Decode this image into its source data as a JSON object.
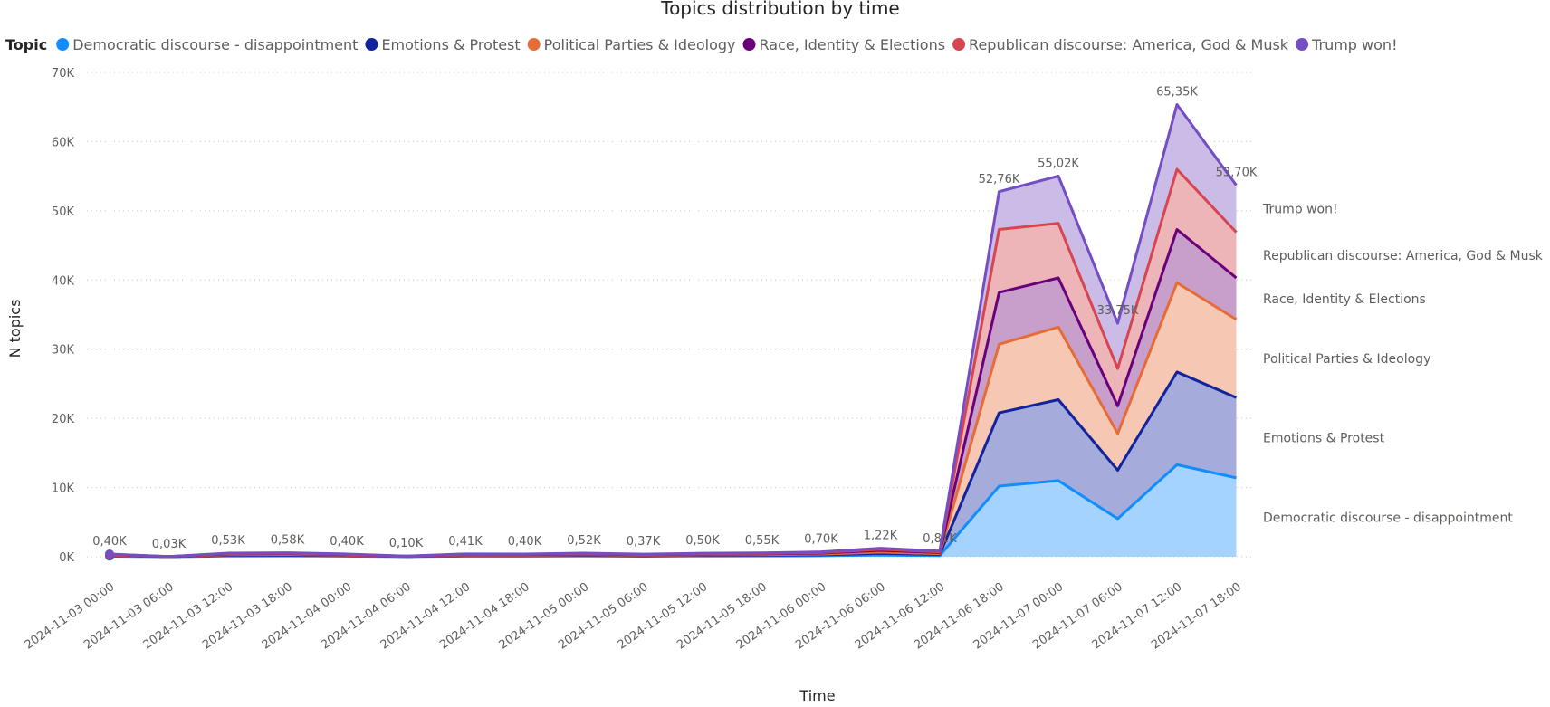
{
  "legend": {
    "title": "Topic"
  },
  "chart_data": {
    "type": "area",
    "stacked": true,
    "title": "Topics distribution by time",
    "xlabel": "Time",
    "ylabel": "N topics",
    "ylim": [
      0,
      70000
    ],
    "y_ticks": [
      0,
      10000,
      20000,
      30000,
      40000,
      50000,
      60000,
      70000
    ],
    "y_tick_labels": [
      "0K",
      "10K",
      "20K",
      "30K",
      "40K",
      "50K",
      "60K",
      "70K"
    ],
    "grid": true,
    "legend_position": "top-left",
    "categories": [
      "2024-11-03 00:00",
      "2024-11-03 06:00",
      "2024-11-03 12:00",
      "2024-11-03 18:00",
      "2024-11-04 00:00",
      "2024-11-04 06:00",
      "2024-11-04 12:00",
      "2024-11-04 18:00",
      "2024-11-05 00:00",
      "2024-11-05 06:00",
      "2024-11-05 12:00",
      "2024-11-05 18:00",
      "2024-11-06 00:00",
      "2024-11-06 06:00",
      "2024-11-06 12:00",
      "2024-11-06 18:00",
      "2024-11-07 00:00",
      "2024-11-07 06:00",
      "2024-11-07 12:00",
      "2024-11-07 18:00"
    ],
    "totals_labels": [
      "0,40K",
      "0,03K",
      "0,53K",
      "0,58K",
      "0,40K",
      "0,10K",
      "0,41K",
      "0,40K",
      "0,52K",
      "0,37K",
      "0,50K",
      "0,55K",
      "0,70K",
      "1,22K",
      "0,81K",
      "52,76K",
      "55,02K",
      "33,75K",
      "65,35K",
      "53,70K"
    ],
    "series": [
      {
        "name": "Democratic discourse - disappointment",
        "color": "#118DFF",
        "fill": "#A0D1FF",
        "values": [
          80,
          6,
          100,
          110,
          80,
          20,
          80,
          80,
          100,
          70,
          100,
          110,
          140,
          240,
          160,
          10200,
          11000,
          5500,
          13300,
          11400
        ]
      },
      {
        "name": "Emotions & Protest",
        "color": "#12239E",
        "fill": "#A0A7D8",
        "values": [
          80,
          6,
          110,
          120,
          80,
          20,
          80,
          80,
          110,
          80,
          100,
          110,
          140,
          250,
          160,
          10600,
          11700,
          7000,
          13400,
          11600
        ]
      },
      {
        "name": "Political Parties & Ideology",
        "color": "#E66C37",
        "fill": "#F5C4AF",
        "values": [
          60,
          5,
          80,
          90,
          60,
          15,
          60,
          60,
          80,
          55,
          75,
          80,
          100,
          180,
          120,
          9900,
          10500,
          5300,
          12900,
          11300
        ]
      },
      {
        "name": "Race, Identity & Elections",
        "color": "#6B007B",
        "fill": "#C599C8",
        "values": [
          80,
          6,
          110,
          120,
          80,
          20,
          80,
          80,
          100,
          70,
          100,
          110,
          140,
          250,
          160,
          7500,
          7100,
          4000,
          7700,
          6000
        ]
      },
      {
        "name": "Republican discourse: America, God & Musk",
        "color": "#D64550",
        "fill": "#EDB1B5",
        "values": [
          40,
          3,
          60,
          60,
          40,
          10,
          50,
          50,
          60,
          40,
          60,
          60,
          80,
          140,
          100,
          9100,
          7900,
          5400,
          8700,
          6600
        ]
      },
      {
        "name": "Trump won!",
        "color": "#744EC2",
        "fill": "#C8B8E6",
        "values": [
          60,
          4,
          70,
          80,
          60,
          15,
          60,
          50,
          70,
          55,
          65,
          80,
          100,
          160,
          110,
          5460,
          6820,
          6550,
          9350,
          6800
        ]
      }
    ]
  }
}
